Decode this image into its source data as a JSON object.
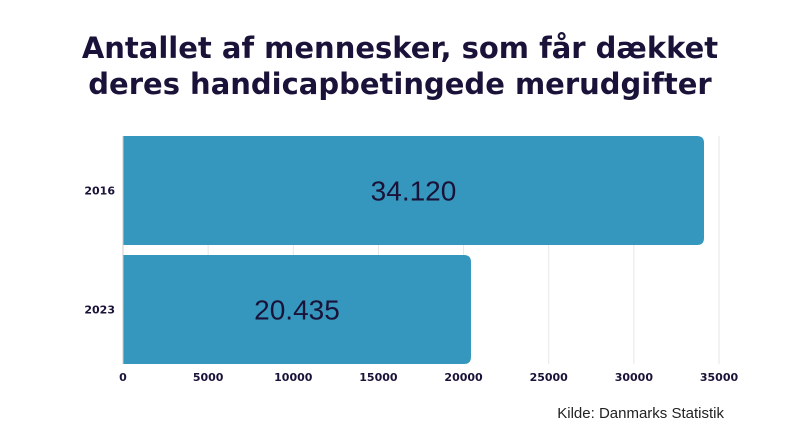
{
  "title_line1": "Antallet af mennesker, som får dækket",
  "title_line2": "deres handicapbetingede merudgifter",
  "source": "Kilde: Danmarks Statistik",
  "colors": {
    "bar": "#3597bd",
    "text": "#1a1238",
    "grid": "#e6e6e6"
  },
  "chart_data": {
    "type": "bar",
    "orientation": "horizontal",
    "title": "Antallet af mennesker, som får dækket deres handicapbetingede merudgifter",
    "categories": [
      "2016",
      "2023"
    ],
    "values": [
      34120,
      20435
    ],
    "value_labels": [
      "34.120",
      "20.435"
    ],
    "xlim": [
      0,
      35000
    ],
    "xticks": [
      0,
      5000,
      10000,
      15000,
      20000,
      25000,
      30000,
      35000
    ],
    "grid": true,
    "legend": "none"
  }
}
